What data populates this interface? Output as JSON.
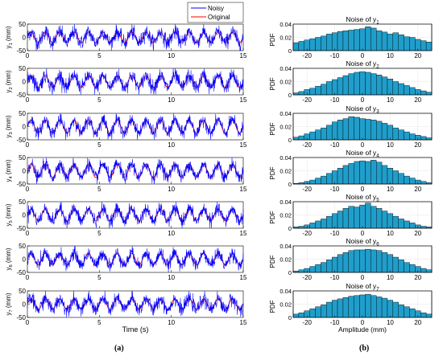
{
  "figure": {
    "caption_left": "(a)",
    "caption_right": "(b)"
  },
  "colors": {
    "noisy": "#0000ff",
    "original": "#ff0000",
    "bar_fill": "#1f9ecb",
    "bar_edge": "#000000"
  },
  "chart_data": [
    {
      "type": "line",
      "panel": "time-series",
      "xlabel": "Time (s)",
      "xlim": [
        0,
        15
      ],
      "ylim": [
        -50,
        50
      ],
      "xticks": [
        0,
        5,
        10,
        15
      ],
      "yticks": [
        -50,
        0,
        50
      ],
      "legend": {
        "placement": "top-right",
        "entries": [
          "Noisy",
          "Original"
        ]
      },
      "series": [
        {
          "name": "Noisy"
        },
        {
          "name": "Original"
        }
      ],
      "channels": [
        {
          "ylabel_main": "y",
          "ylabel_sub": "1",
          "ylabel_unit": "(mm)",
          "signal_freq_hz": 1.0,
          "signal_amp_mm": 20,
          "noise_std_mm": 14
        },
        {
          "ylabel_main": "y",
          "ylabel_sub": "2",
          "ylabel_unit": "(mm)",
          "signal_freq_hz": 1.0,
          "signal_amp_mm": 22,
          "noise_std_mm": 14
        },
        {
          "ylabel_main": "y",
          "ylabel_sub": "3",
          "ylabel_unit": "(mm)",
          "signal_freq_hz": 1.0,
          "signal_amp_mm": 25,
          "noise_std_mm": 12
        },
        {
          "ylabel_main": "y",
          "ylabel_sub": "4",
          "ylabel_unit": "(mm)",
          "signal_freq_hz": 1.0,
          "signal_amp_mm": 25,
          "noise_std_mm": 12
        },
        {
          "ylabel_main": "y",
          "ylabel_sub": "5",
          "ylabel_unit": "(mm)",
          "signal_freq_hz": 1.0,
          "signal_amp_mm": 22,
          "noise_std_mm": 12
        },
        {
          "ylabel_main": "y",
          "ylabel_sub": "6",
          "ylabel_unit": "(mm)",
          "signal_freq_hz": 1.0,
          "signal_amp_mm": 22,
          "noise_std_mm": 12
        },
        {
          "ylabel_main": "y",
          "ylabel_sub": "7",
          "ylabel_unit": "(mm)",
          "signal_freq_hz": 1.0,
          "signal_amp_mm": 20,
          "noise_std_mm": 13
        }
      ]
    },
    {
      "type": "bar",
      "panel": "histograms",
      "xlabel": "Amplitude (mm)",
      "ylabel": "PDF",
      "xlim": [
        -25,
        25
      ],
      "ylim": [
        0,
        0.04
      ],
      "xticks": [
        -20,
        -10,
        0,
        10,
        20
      ],
      "yticks": [
        0,
        0.02,
        0.04
      ],
      "ytick_labels": [
        "0",
        "0.02",
        "0.04"
      ],
      "bin_edges": [
        -25,
        -23,
        -21,
        -19,
        -17,
        -15,
        -13,
        -11,
        -9,
        -7,
        -5,
        -3,
        -1,
        1,
        3,
        5,
        7,
        9,
        11,
        13,
        15,
        17,
        19,
        21,
        23,
        25
      ],
      "histograms": [
        {
          "title_main": "Noise of y",
          "title_sub": "1",
          "values": [
            0.012,
            0.014,
            0.016,
            0.018,
            0.02,
            0.022,
            0.025,
            0.027,
            0.029,
            0.03,
            0.031,
            0.032,
            0.033,
            0.036,
            0.034,
            0.03,
            0.028,
            0.025,
            0.027,
            0.024,
            0.021,
            0.02,
            0.017,
            0.015,
            0.013
          ]
        },
        {
          "title_main": "Noise of y",
          "title_sub": "2",
          "values": [
            0.003,
            0.005,
            0.008,
            0.01,
            0.013,
            0.016,
            0.02,
            0.023,
            0.026,
            0.029,
            0.032,
            0.034,
            0.035,
            0.034,
            0.032,
            0.03,
            0.027,
            0.024,
            0.02,
            0.017,
            0.014,
            0.011,
            0.008,
            0.006,
            0.004
          ]
        },
        {
          "title_main": "Noise of y",
          "title_sub": "3",
          "values": [
            0.004,
            0.006,
            0.009,
            0.012,
            0.015,
            0.018,
            0.022,
            0.027,
            0.03,
            0.032,
            0.035,
            0.034,
            0.032,
            0.031,
            0.03,
            0.028,
            0.025,
            0.022,
            0.018,
            0.015,
            0.012,
            0.009,
            0.007,
            0.005,
            0.003
          ]
        },
        {
          "title_main": "Noise of y",
          "title_sub": "4",
          "values": [
            0.001,
            0.002,
            0.004,
            0.006,
            0.009,
            0.012,
            0.016,
            0.02,
            0.024,
            0.028,
            0.031,
            0.034,
            0.035,
            0.034,
            0.036,
            0.033,
            0.028,
            0.024,
            0.02,
            0.016,
            0.012,
            0.009,
            0.006,
            0.004,
            0.002
          ]
        },
        {
          "title_main": "Noise of y",
          "title_sub": "5",
          "values": [
            0.002,
            0.003,
            0.005,
            0.008,
            0.011,
            0.014,
            0.018,
            0.022,
            0.026,
            0.03,
            0.033,
            0.032,
            0.035,
            0.038,
            0.033,
            0.03,
            0.026,
            0.022,
            0.018,
            0.014,
            0.011,
            0.008,
            0.005,
            0.003,
            0.002
          ]
        },
        {
          "title_main": "Noise of y",
          "title_sub": "6",
          "values": [
            0.002,
            0.004,
            0.006,
            0.009,
            0.012,
            0.015,
            0.019,
            0.023,
            0.027,
            0.03,
            0.033,
            0.034,
            0.034,
            0.035,
            0.034,
            0.033,
            0.03,
            0.027,
            0.023,
            0.019,
            0.015,
            0.012,
            0.009,
            0.006,
            0.004
          ]
        },
        {
          "title_main": "Noise of y",
          "title_sub": "7",
          "values": [
            0.005,
            0.007,
            0.01,
            0.013,
            0.016,
            0.019,
            0.023,
            0.026,
            0.028,
            0.03,
            0.032,
            0.033,
            0.034,
            0.035,
            0.033,
            0.031,
            0.029,
            0.026,
            0.023,
            0.019,
            0.016,
            0.013,
            0.01,
            0.007,
            0.005
          ]
        }
      ]
    }
  ]
}
